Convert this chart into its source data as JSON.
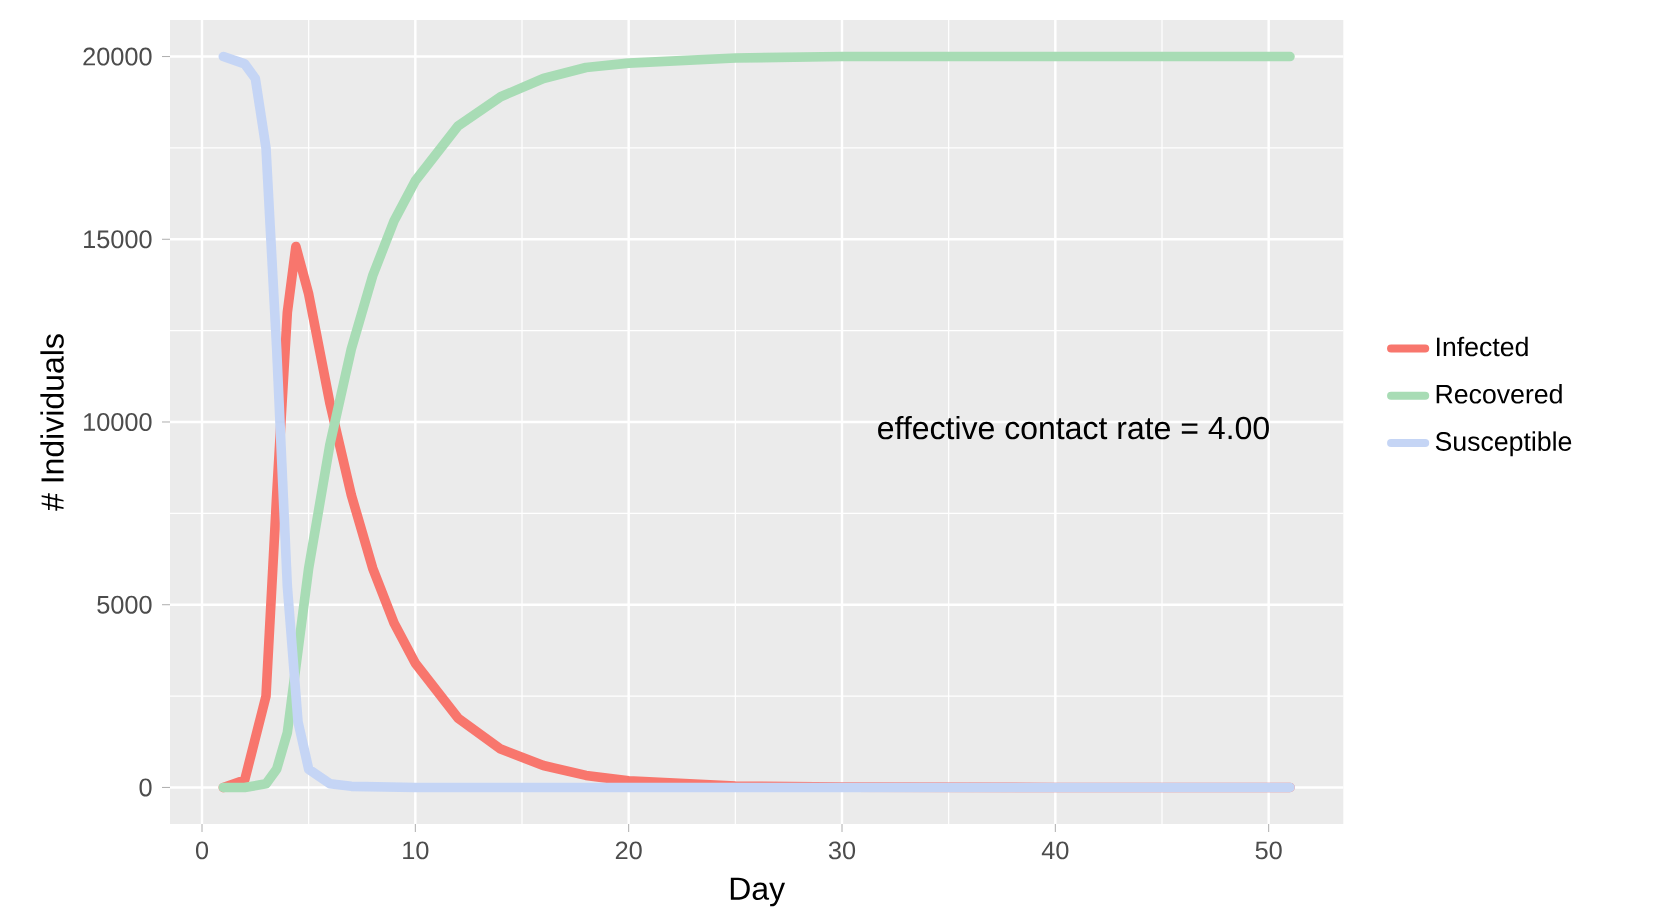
{
  "chart_data": {
    "type": "line",
    "xlabel": "Day",
    "ylabel": "# Individuals",
    "xlim": [
      -1.5,
      53.5
    ],
    "ylim": [
      -1000,
      21000
    ],
    "xticks": [
      0,
      10,
      20,
      30,
      40,
      50
    ],
    "yticks": [
      0,
      5000,
      10000,
      15000,
      20000
    ],
    "grid": true,
    "legend": "right",
    "line_style": "solid",
    "marker": "none",
    "annotations": [
      "effective contact rate =  4.00"
    ],
    "series": [
      {
        "name": "Infected",
        "color": "#f8766d",
        "x": [
          1,
          2,
          3,
          3.5,
          4,
          4.4,
          5,
          6,
          7,
          8,
          9,
          10,
          12,
          14,
          16,
          18,
          20,
          25,
          30,
          40,
          51
        ],
        "values": [
          0,
          200,
          2500,
          8000,
          13000,
          14800,
          13500,
          10500,
          8000,
          6000,
          4500,
          3400,
          1900,
          1050,
          600,
          330,
          180,
          40,
          10,
          0,
          0
        ]
      },
      {
        "name": "Recovered",
        "color": "#a8dcb5",
        "x": [
          1,
          2,
          3,
          3.5,
          4,
          5,
          6,
          7,
          8,
          9,
          10,
          12,
          14,
          16,
          18,
          20,
          25,
          30,
          51
        ],
        "values": [
          0,
          0,
          100,
          500,
          1500,
          6000,
          9400,
          12000,
          14000,
          15500,
          16600,
          18100,
          18900,
          19400,
          19700,
          19820,
          19960,
          20000,
          20000
        ]
      },
      {
        "name": "Susceptible",
        "color": "#c5d5f5",
        "x": [
          1,
          2,
          2.5,
          3,
          3.5,
          4,
          4.5,
          5,
          6,
          7,
          10,
          51
        ],
        "values": [
          20000,
          19800,
          19400,
          17500,
          12000,
          5500,
          1800,
          500,
          100,
          30,
          0,
          0
        ]
      }
    ]
  }
}
